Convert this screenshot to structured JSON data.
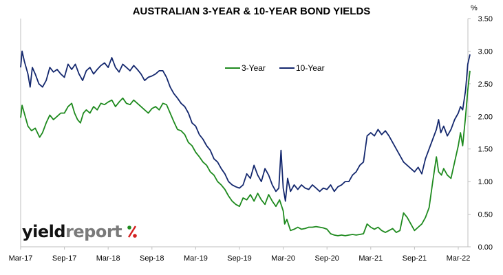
{
  "chart_data": {
    "type": "line",
    "title": "AUSTRALIAN 3-YEAR & 10-YEAR BOND YIELDS",
    "unit": "%",
    "xlabel": "",
    "ylabel": "",
    "y_axis_side": "right",
    "ylim": [
      0,
      3.5
    ],
    "yticks": [
      "0.00",
      "0.50",
      "1.00",
      "1.50",
      "2.00",
      "2.50",
      "3.00",
      "3.50"
    ],
    "xlim": [
      0,
      60
    ],
    "xticks": [
      {
        "label": "Mar-17",
        "x": 0
      },
      {
        "label": "Sep-17",
        "x": 6
      },
      {
        "label": "Mar-18",
        "x": 12
      },
      {
        "label": "Sep-18",
        "x": 18
      },
      {
        "label": "Mar-19",
        "x": 24
      },
      {
        "label": "Sep-19",
        "x": 30
      },
      {
        "label": "Mar-20",
        "x": 36
      },
      {
        "label": "Sep-20",
        "x": 42
      },
      {
        "label": "Mar-21",
        "x": 48
      },
      {
        "label": "Sep-21",
        "x": 54
      },
      {
        "label": "Mar-22",
        "x": 60
      }
    ],
    "grid": false,
    "legend_position": "top-center",
    "series": [
      {
        "name": "3-Year",
        "color": "#1e8a1e",
        "points": [
          [
            0,
            1.98
          ],
          [
            0.2,
            2.17
          ],
          [
            0.5,
            2.05
          ],
          [
            1,
            1.85
          ],
          [
            1.5,
            1.78
          ],
          [
            2,
            1.82
          ],
          [
            2.6,
            1.68
          ],
          [
            3,
            1.75
          ],
          [
            3.5,
            1.9
          ],
          [
            4,
            2.02
          ],
          [
            4.5,
            1.95
          ],
          [
            5,
            2.0
          ],
          [
            5.5,
            2.05
          ],
          [
            6,
            2.05
          ],
          [
            6.5,
            2.15
          ],
          [
            7,
            2.2
          ],
          [
            7.4,
            2.05
          ],
          [
            7.8,
            1.95
          ],
          [
            8.2,
            1.9
          ],
          [
            8.6,
            2.05
          ],
          [
            9,
            2.1
          ],
          [
            9.5,
            2.05
          ],
          [
            10,
            2.15
          ],
          [
            10.5,
            2.1
          ],
          [
            11,
            2.2
          ],
          [
            11.5,
            2.18
          ],
          [
            12,
            2.22
          ],
          [
            12.5,
            2.25
          ],
          [
            13,
            2.15
          ],
          [
            13.5,
            2.22
          ],
          [
            14,
            2.28
          ],
          [
            14.5,
            2.2
          ],
          [
            15,
            2.18
          ],
          [
            15.5,
            2.25
          ],
          [
            16,
            2.2
          ],
          [
            16.5,
            2.15
          ],
          [
            17,
            2.1
          ],
          [
            17.5,
            2.05
          ],
          [
            18,
            2.12
          ],
          [
            18.5,
            2.15
          ],
          [
            19,
            2.1
          ],
          [
            19.5,
            2.2
          ],
          [
            20,
            2.18
          ],
          [
            20.5,
            2.05
          ],
          [
            21,
            1.92
          ],
          [
            21.5,
            1.8
          ],
          [
            22,
            1.78
          ],
          [
            22.5,
            1.72
          ],
          [
            23,
            1.6
          ],
          [
            23.5,
            1.55
          ],
          [
            24,
            1.45
          ],
          [
            24.5,
            1.38
          ],
          [
            25,
            1.3
          ],
          [
            25.5,
            1.25
          ],
          [
            26,
            1.15
          ],
          [
            26.5,
            1.1
          ],
          [
            27,
            1.0
          ],
          [
            27.5,
            0.95
          ],
          [
            28,
            0.88
          ],
          [
            28.5,
            0.78
          ],
          [
            29,
            0.7
          ],
          [
            29.5,
            0.65
          ],
          [
            30,
            0.62
          ],
          [
            30.5,
            0.75
          ],
          [
            31,
            0.72
          ],
          [
            31.5,
            0.8
          ],
          [
            32,
            0.7
          ],
          [
            32.5,
            0.82
          ],
          [
            33,
            0.72
          ],
          [
            33.5,
            0.65
          ],
          [
            34,
            0.8
          ],
          [
            34.5,
            0.7
          ],
          [
            35,
            0.62
          ],
          [
            35.5,
            0.72
          ],
          [
            36,
            0.55
          ],
          [
            36.2,
            0.35
          ],
          [
            36.5,
            0.42
          ],
          [
            37,
            0.25
          ],
          [
            37.5,
            0.27
          ],
          [
            38,
            0.3
          ],
          [
            38.5,
            0.27
          ],
          [
            39,
            0.28
          ],
          [
            39.5,
            0.3
          ],
          [
            40,
            0.3
          ],
          [
            40.5,
            0.31
          ],
          [
            41,
            0.3
          ],
          [
            41.5,
            0.29
          ],
          [
            42,
            0.27
          ],
          [
            42.5,
            0.2
          ],
          [
            43,
            0.18
          ],
          [
            43.5,
            0.17
          ],
          [
            44,
            0.18
          ],
          [
            44.5,
            0.17
          ],
          [
            45,
            0.18
          ],
          [
            45.5,
            0.19
          ],
          [
            46,
            0.18
          ],
          [
            46.5,
            0.19
          ],
          [
            47,
            0.2
          ],
          [
            47.5,
            0.35
          ],
          [
            48,
            0.3
          ],
          [
            48.5,
            0.27
          ],
          [
            49,
            0.3
          ],
          [
            49.5,
            0.25
          ],
          [
            50,
            0.22
          ],
          [
            50.5,
            0.25
          ],
          [
            51,
            0.28
          ],
          [
            51.5,
            0.22
          ],
          [
            52,
            0.25
          ],
          [
            52.5,
            0.52
          ],
          [
            53,
            0.45
          ],
          [
            53.5,
            0.35
          ],
          [
            54,
            0.25
          ],
          [
            54.5,
            0.3
          ],
          [
            55,
            0.35
          ],
          [
            55.5,
            0.45
          ],
          [
            56,
            0.6
          ],
          [
            56.5,
            1.0
          ],
          [
            57,
            1.38
          ],
          [
            57.3,
            1.15
          ],
          [
            57.7,
            1.1
          ],
          [
            58,
            1.2
          ],
          [
            58.5,
            1.1
          ],
          [
            59,
            1.05
          ],
          [
            59.5,
            1.3
          ],
          [
            60,
            1.55
          ],
          [
            60.3,
            1.75
          ],
          [
            60.6,
            1.55
          ],
          [
            61,
            2.0
          ],
          [
            61.3,
            2.4
          ],
          [
            61.6,
            2.7
          ]
        ]
      },
      {
        "name": "10-Year",
        "color": "#14286e",
        "points": [
          [
            0,
            2.75
          ],
          [
            0.2,
            3.0
          ],
          [
            0.5,
            2.85
          ],
          [
            1,
            2.65
          ],
          [
            1.3,
            2.45
          ],
          [
            1.6,
            2.75
          ],
          [
            2,
            2.65
          ],
          [
            2.5,
            2.5
          ],
          [
            3,
            2.45
          ],
          [
            3.5,
            2.55
          ],
          [
            4,
            2.75
          ],
          [
            4.5,
            2.68
          ],
          [
            5,
            2.72
          ],
          [
            5.5,
            2.65
          ],
          [
            6,
            2.6
          ],
          [
            6.5,
            2.8
          ],
          [
            7,
            2.72
          ],
          [
            7.5,
            2.8
          ],
          [
            8,
            2.65
          ],
          [
            8.5,
            2.55
          ],
          [
            9,
            2.7
          ],
          [
            9.5,
            2.75
          ],
          [
            10,
            2.65
          ],
          [
            10.5,
            2.72
          ],
          [
            11,
            2.78
          ],
          [
            11.5,
            2.82
          ],
          [
            12,
            2.75
          ],
          [
            12.5,
            2.9
          ],
          [
            13,
            2.75
          ],
          [
            13.5,
            2.68
          ],
          [
            14,
            2.8
          ],
          [
            14.5,
            2.75
          ],
          [
            15,
            2.7
          ],
          [
            15.5,
            2.78
          ],
          [
            16,
            2.72
          ],
          [
            16.5,
            2.65
          ],
          [
            17,
            2.55
          ],
          [
            17.5,
            2.6
          ],
          [
            18,
            2.62
          ],
          [
            18.5,
            2.65
          ],
          [
            19,
            2.7
          ],
          [
            19.5,
            2.7
          ],
          [
            20,
            2.6
          ],
          [
            20.5,
            2.45
          ],
          [
            21,
            2.35
          ],
          [
            21.5,
            2.28
          ],
          [
            22,
            2.2
          ],
          [
            22.5,
            2.15
          ],
          [
            23,
            2.05
          ],
          [
            23.5,
            1.9
          ],
          [
            24,
            1.85
          ],
          [
            24.5,
            1.72
          ],
          [
            25,
            1.65
          ],
          [
            25.5,
            1.55
          ],
          [
            26,
            1.48
          ],
          [
            26.5,
            1.35
          ],
          [
            27,
            1.3
          ],
          [
            27.5,
            1.2
          ],
          [
            28,
            1.12
          ],
          [
            28.5,
            1.0
          ],
          [
            29,
            0.95
          ],
          [
            29.5,
            0.92
          ],
          [
            30,
            0.9
          ],
          [
            30.5,
            0.95
          ],
          [
            31,
            1.12
          ],
          [
            31.5,
            1.05
          ],
          [
            32,
            1.25
          ],
          [
            32.5,
            1.1
          ],
          [
            33,
            1.0
          ],
          [
            33.5,
            1.2
          ],
          [
            34,
            1.1
          ],
          [
            34.5,
            0.95
          ],
          [
            35,
            0.85
          ],
          [
            35.4,
            0.9
          ],
          [
            35.7,
            1.48
          ],
          [
            36,
            0.9
          ],
          [
            36.3,
            0.7
          ],
          [
            36.6,
            1.05
          ],
          [
            37,
            0.85
          ],
          [
            37.5,
            0.95
          ],
          [
            38,
            0.88
          ],
          [
            38.5,
            0.95
          ],
          [
            39,
            0.9
          ],
          [
            39.5,
            0.88
          ],
          [
            40,
            0.95
          ],
          [
            40.5,
            0.9
          ],
          [
            41,
            0.85
          ],
          [
            41.5,
            0.9
          ],
          [
            42,
            0.88
          ],
          [
            42.5,
            0.95
          ],
          [
            43,
            0.85
          ],
          [
            43.5,
            0.92
          ],
          [
            44,
            0.95
          ],
          [
            44.5,
            1.0
          ],
          [
            45,
            1.0
          ],
          [
            45.5,
            1.1
          ],
          [
            46,
            1.15
          ],
          [
            46.5,
            1.25
          ],
          [
            47,
            1.3
          ],
          [
            47.5,
            1.7
          ],
          [
            48,
            1.75
          ],
          [
            48.5,
            1.7
          ],
          [
            49,
            1.8
          ],
          [
            49.5,
            1.72
          ],
          [
            50,
            1.78
          ],
          [
            50.5,
            1.7
          ],
          [
            51,
            1.6
          ],
          [
            51.5,
            1.5
          ],
          [
            52,
            1.4
          ],
          [
            52.5,
            1.3
          ],
          [
            53,
            1.25
          ],
          [
            53.5,
            1.2
          ],
          [
            54,
            1.15
          ],
          [
            54.5,
            1.22
          ],
          [
            55,
            1.12
          ],
          [
            55.5,
            1.35
          ],
          [
            56,
            1.5
          ],
          [
            56.5,
            1.65
          ],
          [
            57,
            1.8
          ],
          [
            57.3,
            1.95
          ],
          [
            57.6,
            1.75
          ],
          [
            58,
            1.85
          ],
          [
            58.5,
            1.7
          ],
          [
            59,
            1.8
          ],
          [
            59.5,
            1.95
          ],
          [
            60,
            2.05
          ],
          [
            60.3,
            2.15
          ],
          [
            60.6,
            2.1
          ],
          [
            61,
            2.4
          ],
          [
            61.3,
            2.8
          ],
          [
            61.6,
            2.95
          ]
        ]
      }
    ]
  },
  "branding": {
    "logo_part1": "yield",
    "logo_part2": "report",
    "logo_pct": "%"
  }
}
